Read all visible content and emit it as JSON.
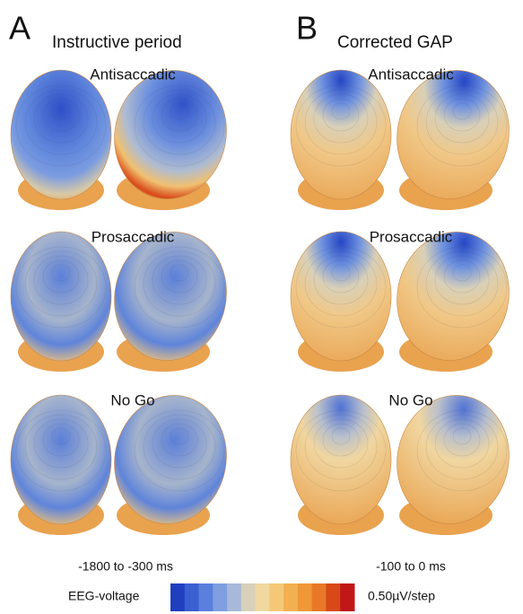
{
  "panels": [
    {
      "letter": "A",
      "title": "Instructive period",
      "rows": [
        "Antisaccadic",
        "Prosaccadic",
        "No Go"
      ],
      "time_window": "-1800 to -300 ms"
    },
    {
      "letter": "B",
      "title": "Corrected GAP",
      "rows": [
        "Antisaccadic",
        "Prosaccadic",
        "No Go"
      ],
      "time_window": "-100 to 0 ms"
    }
  ],
  "colorbar": {
    "label": "EEG-voltage",
    "scale": "0.50µV/step"
  }
}
